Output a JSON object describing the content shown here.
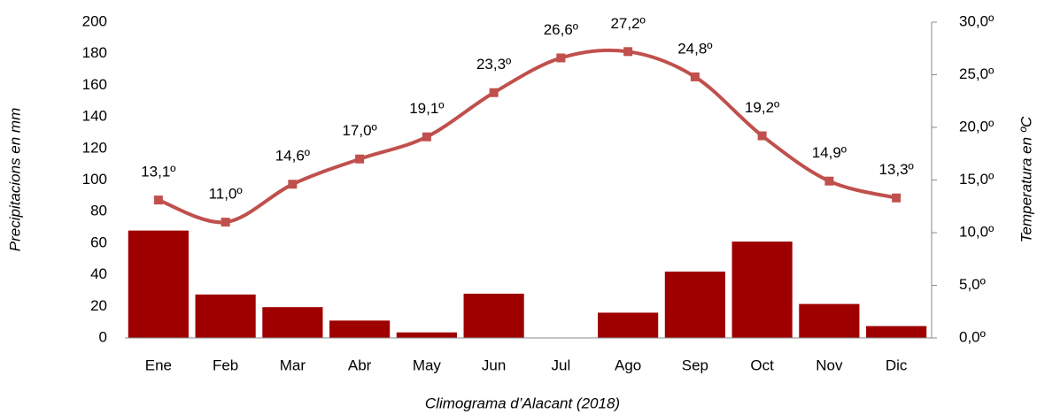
{
  "chart_data": {
    "type": "combo",
    "title": "Climograma d’Alacant (2018)",
    "ylabel": "Precipitacions en mm",
    "y2label": "Temperatura en ºC",
    "categories": [
      "Ene",
      "Feb",
      "Mar",
      "Abr",
      "May",
      "Jun",
      "Jul",
      "Ago",
      "Sep",
      "Oct",
      "Nov",
      "Dic"
    ],
    "ylim": [
      0,
      200
    ],
    "yticks": [
      0,
      20,
      40,
      60,
      80,
      100,
      120,
      140,
      160,
      180,
      200
    ],
    "y2lim": [
      0,
      30
    ],
    "y2ticks": [
      {
        "value": 0,
        "label": "0,0º"
      },
      {
        "value": 5,
        "label": "5,0º"
      },
      {
        "value": 10,
        "label": "10,0º"
      },
      {
        "value": 15,
        "label": "15,0º"
      },
      {
        "value": 20,
        "label": "20,0º"
      },
      {
        "value": 25,
        "label": "25,0º"
      },
      {
        "value": 30,
        "label": "30,0º"
      }
    ],
    "series": [
      {
        "type": "bar",
        "color": "#9e0000",
        "values": [
          68,
          27.5,
          19.5,
          11,
          3.5,
          28,
          0,
          16,
          42,
          61,
          21.5,
          7.5
        ]
      },
      {
        "type": "line",
        "axis": "y2",
        "color": "#c0504d",
        "smooth": true,
        "values": [
          13.1,
          11.0,
          14.6,
          17.0,
          19.1,
          23.3,
          26.6,
          27.2,
          24.8,
          19.2,
          14.9,
          13.3
        ],
        "value_labels": [
          "13,1º",
          "11,0º",
          "14,6º",
          "17,0º",
          "19,1º",
          "23,3º",
          "26,6º",
          "27,2º",
          "24,8º",
          "19,2º",
          "14,9º",
          "13,3º"
        ]
      }
    ]
  }
}
